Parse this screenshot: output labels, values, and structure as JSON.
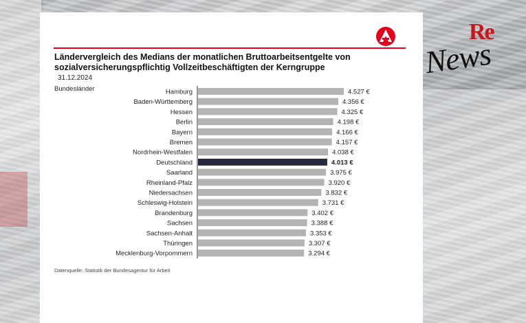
{
  "watermark": {
    "re": "Re",
    "news": "News"
  },
  "logo": {
    "icon": "agency-a-logo-icon",
    "color": "#e2001a"
  },
  "chart_data": {
    "type": "bar",
    "orientation": "horizontal",
    "title": "Ländervergleich des Medians der monatlichen Bruttoarbeitsentgelte von sozialversicherungspflichtig Vollzeitbeschäftigten der Kerngruppe",
    "date": "31.12.2024",
    "category_label": "Bundesländer",
    "source": "Datenquelle: Statistik der Bundesagentur für Arbeit",
    "unit": "€",
    "categories": [
      "Hamburg",
      "Baden-Württemberg",
      "Hessen",
      "Berlin",
      "Bayern",
      "Bremen",
      "Nordrhein-Westfalen",
      "Deutschland",
      "Saarland",
      "Rheinland-Pfalz",
      "Niedersachsen",
      "Schleswig-Holstein",
      "Brandenburg",
      "Sachsen",
      "Sachsen-Anhalt",
      "Thüringen",
      "Mecklenburg-Vorpommern"
    ],
    "values": [
      4527,
      4356,
      4325,
      4198,
      4166,
      4157,
      4038,
      4013,
      3975,
      3920,
      3832,
      3731,
      3402,
      3388,
      3353,
      3307,
      3294
    ],
    "value_labels": [
      "4.527 €",
      "4.356 €",
      "4.325 €",
      "4.198 €",
      "4.166 €",
      "4.157 €",
      "4.038 €",
      "4.013 €",
      "3.975 €",
      "3.920 €",
      "3.832 €",
      "3.731 €",
      "3.402 €",
      "3.388 €",
      "3.353 €",
      "3.307 €",
      "3.294 €"
    ],
    "highlight_category": "Deutschland",
    "bar_color": "#b3b3b3",
    "highlight_color": "#252a3e",
    "xlim": [
      0,
      4800
    ],
    "grid": false,
    "legend": "none"
  }
}
